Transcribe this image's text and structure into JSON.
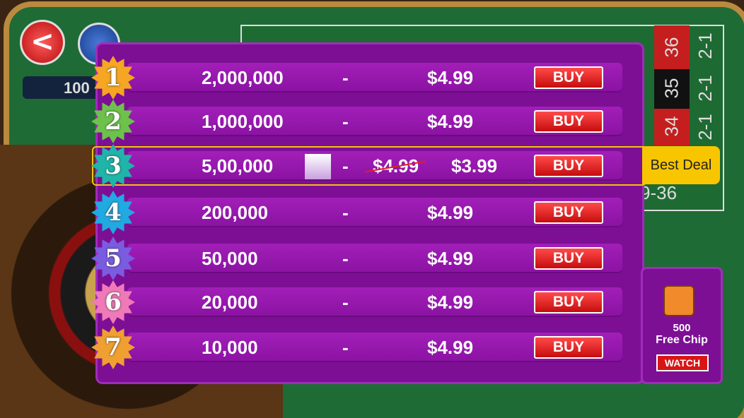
{
  "header": {
    "balance": "100"
  },
  "board": {
    "numbers": [
      "36",
      "35",
      "34"
    ],
    "columns": [
      "2-1",
      "2-1",
      "2-1"
    ],
    "dozen": "9-36"
  },
  "packages": [
    {
      "rank": "1",
      "chips": "2,000,000",
      "separator": "-",
      "price": "$4.99",
      "button": "BUY"
    },
    {
      "rank": "2",
      "chips": "1,000,000",
      "separator": "-",
      "price": "$4.99",
      "button": "BUY"
    },
    {
      "rank": "3",
      "chips": "5,00,000",
      "separator": "-",
      "old_price": "$4.99",
      "price": "$3.99",
      "button": "BUY",
      "badge": "Best Deal"
    },
    {
      "rank": "4",
      "chips": "200,000",
      "separator": "-",
      "price": "$4.99",
      "button": "BUY"
    },
    {
      "rank": "5",
      "chips": "50,000",
      "separator": "-",
      "price": "$4.99",
      "button": "BUY"
    },
    {
      "rank": "6",
      "chips": "20,000",
      "separator": "-",
      "price": "$4.99",
      "button": "BUY"
    },
    {
      "rank": "7",
      "chips": "10,000",
      "separator": "-",
      "price": "$4.99",
      "button": "BUY"
    }
  ],
  "video_offer": {
    "amount": "500",
    "label": "Free Chip",
    "button": "WATCH"
  }
}
